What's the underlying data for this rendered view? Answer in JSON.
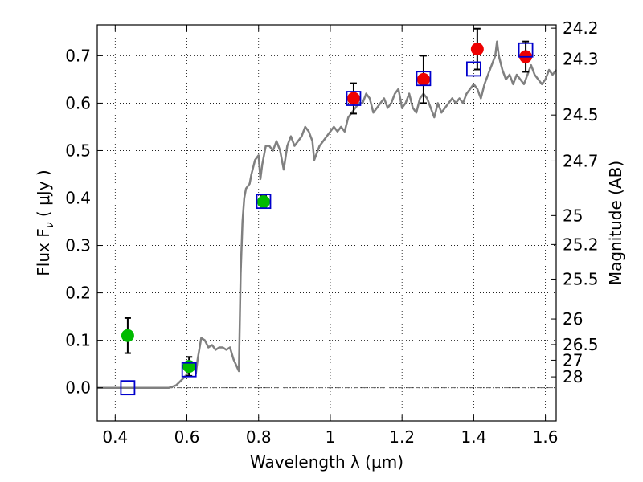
{
  "chart_data": {
    "type": "scatter",
    "xlabel": "Wavelength  λ (μm)",
    "ylabel": "Flux  F",
    "ylabel_sub": "ν",
    "ylabel_unit": "  ( μJy )",
    "y2label": "Magnitude (AB)",
    "xlim": [
      0.35,
      1.63
    ],
    "ylim": [
      -0.07,
      0.765
    ],
    "grid": true,
    "x_ticks": [
      0.4,
      0.6,
      0.8,
      1.0,
      1.2,
      1.4,
      1.6
    ],
    "x_tick_labels": [
      "0.4",
      "0.6",
      "0.8",
      "1",
      "1.2",
      "1.4",
      "1.6"
    ],
    "y_ticks": [
      0.0,
      0.1,
      0.2,
      0.3,
      0.4,
      0.5,
      0.6,
      0.7
    ],
    "y_tick_labels": [
      "0.0",
      "0.1",
      "0.2",
      "0.3",
      "0.4",
      "0.5",
      "0.6",
      "0.7"
    ],
    "y2_ticks": [
      {
        "label": "24.2",
        "flux": 0.758
      },
      {
        "label": "24.3",
        "flux": 0.693
      },
      {
        "label": "24.5",
        "flux": 0.575
      },
      {
        "label": "24.7",
        "flux": 0.478
      },
      {
        "label": "25",
        "flux": 0.363
      },
      {
        "label": "25.2",
        "flux": 0.302
      },
      {
        "label": "25.5",
        "flux": 0.229
      },
      {
        "label": "26",
        "flux": 0.145
      },
      {
        "label": "26.5",
        "flux": 0.091
      },
      {
        "label": "27",
        "flux": 0.058
      },
      {
        "label": "28",
        "flux": 0.023
      }
    ],
    "colors": {
      "model": "#808080",
      "optical_points": "#00bb00",
      "nir_points": "#ee0000",
      "model_photometry": "#0000cc",
      "errorbar": "#000000",
      "grid": "#000000",
      "zero_line": "#666666"
    },
    "model_spectrum": [
      [
        0.35,
        0.0
      ],
      [
        0.55,
        0.0
      ],
      [
        0.57,
        0.005
      ],
      [
        0.59,
        0.02
      ],
      [
        0.6,
        0.028
      ],
      [
        0.61,
        0.035
      ],
      [
        0.62,
        0.05
      ],
      [
        0.625,
        0.03
      ],
      [
        0.63,
        0.06
      ],
      [
        0.64,
        0.105
      ],
      [
        0.65,
        0.1
      ],
      [
        0.66,
        0.085
      ],
      [
        0.67,
        0.09
      ],
      [
        0.68,
        0.08
      ],
      [
        0.69,
        0.085
      ],
      [
        0.7,
        0.085
      ],
      [
        0.71,
        0.08
      ],
      [
        0.72,
        0.085
      ],
      [
        0.73,
        0.06
      ],
      [
        0.745,
        0.035
      ],
      [
        0.75,
        0.24
      ],
      [
        0.755,
        0.35
      ],
      [
        0.76,
        0.4
      ],
      [
        0.765,
        0.42
      ],
      [
        0.775,
        0.43
      ],
      [
        0.78,
        0.45
      ],
      [
        0.79,
        0.48
      ],
      [
        0.8,
        0.49
      ],
      [
        0.805,
        0.44
      ],
      [
        0.81,
        0.47
      ],
      [
        0.82,
        0.51
      ],
      [
        0.83,
        0.51
      ],
      [
        0.84,
        0.5
      ],
      [
        0.85,
        0.52
      ],
      [
        0.855,
        0.51
      ],
      [
        0.86,
        0.5
      ],
      [
        0.87,
        0.46
      ],
      [
        0.88,
        0.51
      ],
      [
        0.89,
        0.53
      ],
      [
        0.9,
        0.51
      ],
      [
        0.91,
        0.52
      ],
      [
        0.92,
        0.53
      ],
      [
        0.93,
        0.55
      ],
      [
        0.94,
        0.54
      ],
      [
        0.945,
        0.53
      ],
      [
        0.95,
        0.52
      ],
      [
        0.955,
        0.48
      ],
      [
        0.96,
        0.49
      ],
      [
        0.97,
        0.51
      ],
      [
        0.98,
        0.52
      ],
      [
        0.99,
        0.53
      ],
      [
        1.0,
        0.54
      ],
      [
        1.01,
        0.55
      ],
      [
        1.02,
        0.54
      ],
      [
        1.03,
        0.55
      ],
      [
        1.04,
        0.54
      ],
      [
        1.05,
        0.57
      ],
      [
        1.06,
        0.58
      ],
      [
        1.07,
        0.59
      ],
      [
        1.08,
        0.6
      ],
      [
        1.09,
        0.6
      ],
      [
        1.1,
        0.62
      ],
      [
        1.11,
        0.61
      ],
      [
        1.12,
        0.58
      ],
      [
        1.13,
        0.59
      ],
      [
        1.14,
        0.6
      ],
      [
        1.15,
        0.61
      ],
      [
        1.16,
        0.59
      ],
      [
        1.17,
        0.6
      ],
      [
        1.18,
        0.62
      ],
      [
        1.19,
        0.63
      ],
      [
        1.2,
        0.59
      ],
      [
        1.21,
        0.6
      ],
      [
        1.22,
        0.62
      ],
      [
        1.23,
        0.59
      ],
      [
        1.24,
        0.58
      ],
      [
        1.25,
        0.61
      ],
      [
        1.26,
        0.62
      ],
      [
        1.27,
        0.61
      ],
      [
        1.28,
        0.59
      ],
      [
        1.29,
        0.57
      ],
      [
        1.3,
        0.6
      ],
      [
        1.31,
        0.58
      ],
      [
        1.32,
        0.59
      ],
      [
        1.33,
        0.6
      ],
      [
        1.34,
        0.61
      ],
      [
        1.35,
        0.6
      ],
      [
        1.36,
        0.61
      ],
      [
        1.37,
        0.6
      ],
      [
        1.38,
        0.62
      ],
      [
        1.39,
        0.63
      ],
      [
        1.4,
        0.64
      ],
      [
        1.41,
        0.63
      ],
      [
        1.42,
        0.61
      ],
      [
        1.43,
        0.64
      ],
      [
        1.44,
        0.66
      ],
      [
        1.45,
        0.68
      ],
      [
        1.46,
        0.7
      ],
      [
        1.465,
        0.73
      ],
      [
        1.47,
        0.7
      ],
      [
        1.48,
        0.67
      ],
      [
        1.49,
        0.65
      ],
      [
        1.5,
        0.66
      ],
      [
        1.51,
        0.64
      ],
      [
        1.52,
        0.66
      ],
      [
        1.53,
        0.65
      ],
      [
        1.54,
        0.64
      ],
      [
        1.55,
        0.66
      ],
      [
        1.56,
        0.68
      ],
      [
        1.57,
        0.66
      ],
      [
        1.58,
        0.65
      ],
      [
        1.59,
        0.64
      ],
      [
        1.6,
        0.65
      ],
      [
        1.61,
        0.67
      ],
      [
        1.62,
        0.66
      ],
      [
        1.63,
        0.67
      ]
    ],
    "optical_points": [
      {
        "x": 0.435,
        "y": 0.11,
        "err": 0.037
      },
      {
        "x": 0.606,
        "y": 0.045,
        "err": 0.02
      },
      {
        "x": 0.814,
        "y": 0.392,
        "err": 0.012
      }
    ],
    "nir_points": [
      {
        "x": 1.065,
        "y": 0.61,
        "err": 0.032
      },
      {
        "x": 1.26,
        "y": 0.65,
        "err": 0.05
      },
      {
        "x": 1.41,
        "y": 0.714,
        "err": 0.043
      },
      {
        "x": 1.545,
        "y": 0.698,
        "err": 0.032
      }
    ],
    "model_photometry": [
      {
        "x": 0.435,
        "y": 0.0
      },
      {
        "x": 0.606,
        "y": 0.038
      },
      {
        "x": 0.814,
        "y": 0.393
      },
      {
        "x": 1.065,
        "y": 0.61
      },
      {
        "x": 1.26,
        "y": 0.652
      },
      {
        "x": 1.4,
        "y": 0.672
      },
      {
        "x": 1.545,
        "y": 0.712
      }
    ]
  }
}
